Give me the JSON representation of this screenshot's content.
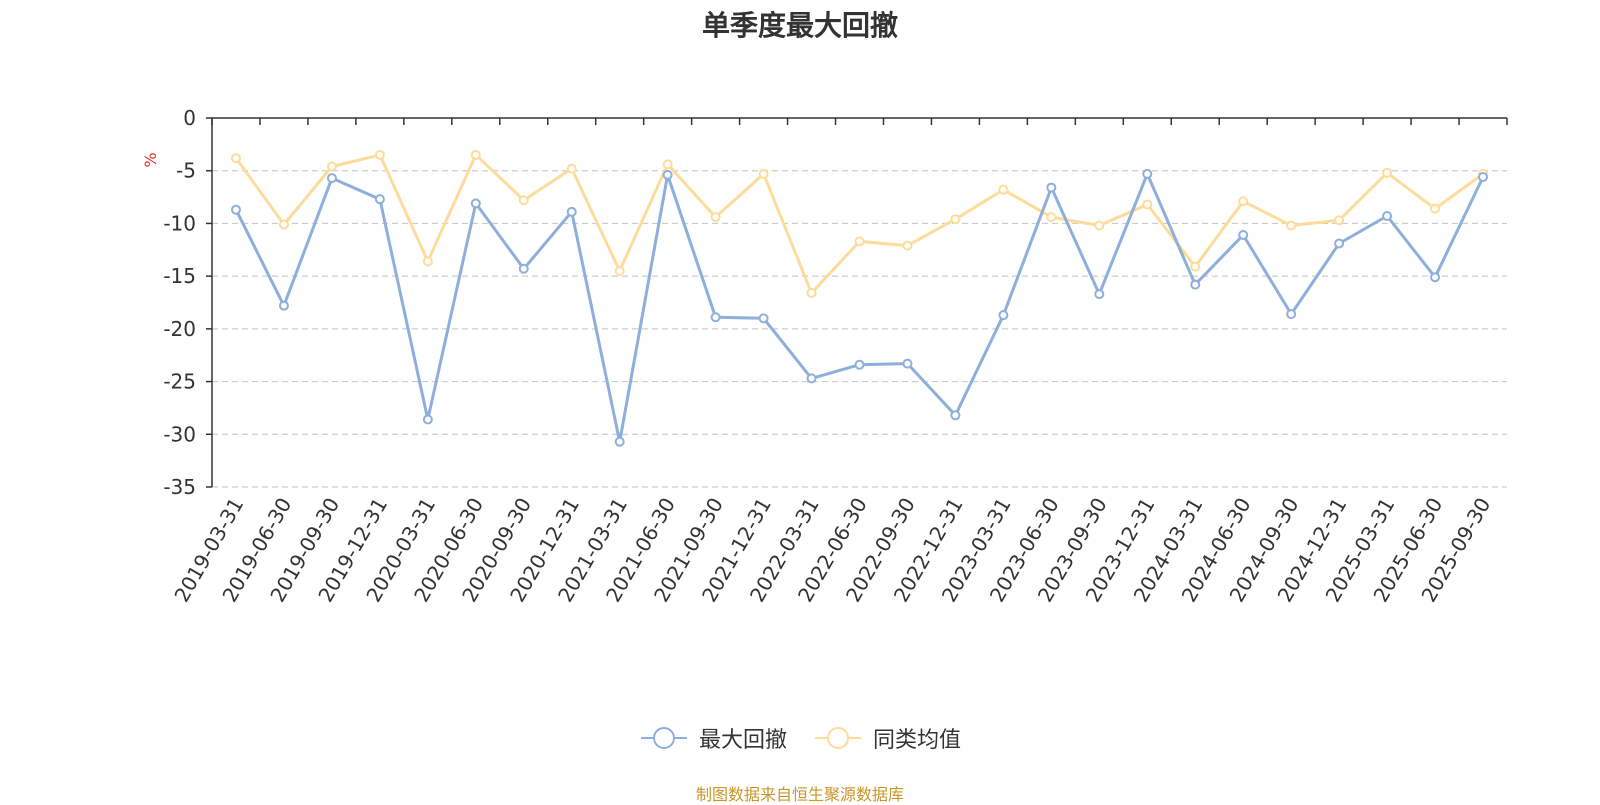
{
  "source_note": "制图数据来自恒生聚源数据库",
  "chart_data": {
    "type": "line",
    "title": "单季度最大回撤",
    "ylabel": "%",
    "xlabel": "",
    "ylim": [
      -35,
      0
    ],
    "yticks": [
      0,
      -5,
      -10,
      -15,
      -20,
      -25,
      -30,
      -35
    ],
    "grid": true,
    "legend_position": "bottom-center",
    "categories": [
      "2019-03-31",
      "2019-06-30",
      "2019-09-30",
      "2019-12-31",
      "2020-03-31",
      "2020-06-30",
      "2020-09-30",
      "2020-12-31",
      "2021-03-31",
      "2021-06-30",
      "2021-09-30",
      "2021-12-31",
      "2022-03-31",
      "2022-06-30",
      "2022-09-30",
      "2022-12-31",
      "2023-03-31",
      "2023-06-30",
      "2023-09-30",
      "2023-12-31",
      "2024-03-31",
      "2024-06-30",
      "2024-09-30",
      "2024-12-31",
      "2025-03-31",
      "2025-06-30",
      "2025-09-30"
    ],
    "series": [
      {
        "name": "最大回撤",
        "color": "#8eaedc",
        "values": [
          -8.7,
          -17.8,
          -5.7,
          -7.7,
          -28.6,
          -8.1,
          -14.3,
          -8.9,
          -30.7,
          -5.4,
          -18.9,
          -19.0,
          -24.7,
          -23.4,
          -23.3,
          -28.2,
          -18.7,
          -6.6,
          -16.7,
          -5.3,
          -15.8,
          -11.1,
          -18.6,
          -11.9,
          -9.3,
          -15.1,
          -5.6
        ]
      },
      {
        "name": "同类均值",
        "color": "#fddc9b",
        "values": [
          -3.8,
          -10.1,
          -4.6,
          -3.5,
          -13.6,
          -3.5,
          -7.8,
          -4.8,
          -14.5,
          -4.4,
          -9.4,
          -5.3,
          -16.6,
          -11.7,
          -12.1,
          -9.6,
          -6.8,
          -9.4,
          -10.2,
          -8.2,
          -14.1,
          -7.9,
          -10.2,
          -9.7,
          -5.2,
          -8.6,
          -5.3
        ]
      }
    ]
  }
}
